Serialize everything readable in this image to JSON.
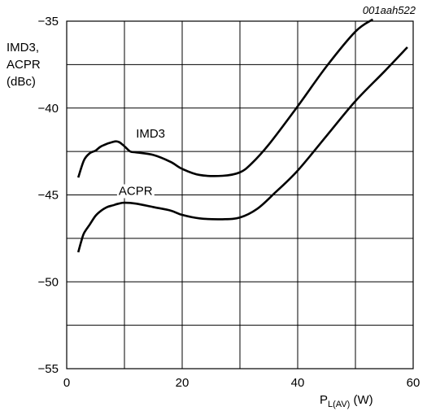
{
  "figure_id": "001aah522",
  "chart_data": {
    "type": "line",
    "ylabel_lines": [
      "IMD3,",
      "ACPR",
      "(dBc)"
    ],
    "xlabel_main": "P",
    "xlabel_sub": "L(AV)",
    "xlabel_unit": " (W)",
    "xlim": [
      0,
      60
    ],
    "ylim": [
      -55,
      -35
    ],
    "x_ticks": [
      0,
      20,
      40,
      60
    ],
    "y_ticks": [
      -35,
      -40,
      -45,
      -50,
      -55
    ],
    "x_grid": [
      0,
      10,
      20,
      30,
      40,
      50,
      60
    ],
    "y_grid": [
      -35,
      -37.5,
      -40,
      -42.5,
      -45,
      -47.5,
      -50,
      -52.5,
      -55
    ],
    "grid": true,
    "series": [
      {
        "name": "IMD3",
        "label_x": 12,
        "label_y": -41.7,
        "x": [
          2,
          3,
          4,
          5,
          6,
          8,
          9,
          10,
          11,
          12,
          15,
          18,
          20,
          23,
          27,
          30,
          32,
          35,
          40,
          45,
          50,
          53
        ],
        "y": [
          -44.0,
          -43.0,
          -42.6,
          -42.45,
          -42.2,
          -41.95,
          -41.95,
          -42.2,
          -42.5,
          -42.55,
          -42.7,
          -43.1,
          -43.5,
          -43.85,
          -43.9,
          -43.7,
          -43.2,
          -42.1,
          -39.9,
          -37.6,
          -35.6,
          -34.9
        ]
      },
      {
        "name": "ACPR",
        "label_x": 9,
        "label_y": -45.0,
        "x": [
          2,
          2.5,
          3,
          4,
          5,
          6,
          7,
          8,
          9,
          10,
          12,
          15,
          18,
          20,
          23,
          27,
          30,
          33,
          36,
          40,
          45,
          50,
          55,
          59
        ],
        "y": [
          -48.3,
          -47.7,
          -47.2,
          -46.7,
          -46.2,
          -45.9,
          -45.7,
          -45.6,
          -45.5,
          -45.45,
          -45.5,
          -45.7,
          -45.9,
          -46.15,
          -46.35,
          -46.4,
          -46.3,
          -45.8,
          -44.9,
          -43.6,
          -41.6,
          -39.6,
          -37.9,
          -36.5
        ]
      }
    ]
  }
}
